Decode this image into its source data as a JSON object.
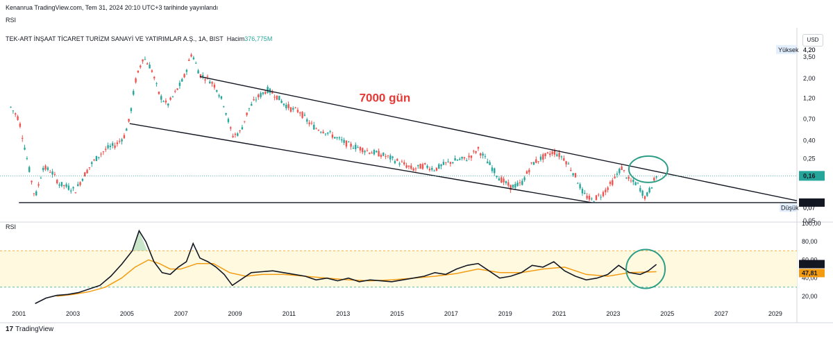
{
  "header": {
    "credit": "Kenanrua TradingView.com, Tem 31, 2024 20:10 UTC+3 tarihinde yayınlandı",
    "indicator_chip": "RSI",
    "symbol_line": "TEK-ART İNŞAAT TİCARET TURİZM SANAYİ VE YATIRIMLAR A.Ş., 1A, BIST",
    "volume_label": "Hacim",
    "volume_value": "376,775M",
    "currency": "USD",
    "brand": "TradingView",
    "brand_mark": "17"
  },
  "chart_data": [
    {
      "type": "candlestick",
      "title": "TEK-ART İNŞAAT TİCARET TURİZM SANAYİ VE YATIRIMLAR A.Ş., 1A, BIST",
      "scale": "log",
      "y_ticks": [
        "4,20",
        "3,50",
        "2,00",
        "1,20",
        "0,70",
        "0,40",
        "0,25",
        "0,16",
        "0,08",
        "0,07",
        "0,05"
      ],
      "y_tick_values": [
        4.2,
        3.5,
        2.0,
        1.2,
        0.7,
        0.4,
        0.25,
        0.16,
        0.08,
        0.07,
        0.05
      ],
      "ylim": [
        0.05,
        4.5
      ],
      "x_ticks": [
        "2001",
        "2003",
        "2005",
        "2007",
        "2009",
        "2011",
        "2013",
        "2015",
        "2017",
        "2019",
        "2021",
        "2023",
        "2025",
        "2027",
        "2029"
      ],
      "x_tick_years": [
        2001,
        2003,
        2005,
        2007,
        2009,
        2011,
        2013,
        2015,
        2017,
        2019,
        2021,
        2023,
        2025,
        2027,
        2029
      ],
      "xlim": [
        2000.3,
        2029.8
      ],
      "last_price": "0,16",
      "high_label": "Yüksek",
      "high_value": "4,20",
      "low_label": "Düşük",
      "low_value": "0,07",
      "support_value": "0,08",
      "annotation": "7000  gün",
      "colors": {
        "up": "#26a69a",
        "down": "#ef5350",
        "annotation": "#e53935",
        "circle": "#2e9e87",
        "trendline": "#131722"
      },
      "price_path": [
        [
          2000.7,
          0.95
        ],
        [
          2001.0,
          0.7
        ],
        [
          2001.3,
          0.25
        ],
        [
          2001.6,
          0.09
        ],
        [
          2001.9,
          0.2
        ],
        [
          2002.2,
          0.18
        ],
        [
          2002.5,
          0.13
        ],
        [
          2002.8,
          0.12
        ],
        [
          2003.1,
          0.11
        ],
        [
          2003.4,
          0.16
        ],
        [
          2003.7,
          0.22
        ],
        [
          2004.0,
          0.28
        ],
        [
          2004.3,
          0.33
        ],
        [
          2004.6,
          0.36
        ],
        [
          2004.9,
          0.45
        ],
        [
          2005.1,
          0.7
        ],
        [
          2005.3,
          1.8
        ],
        [
          2005.6,
          3.5
        ],
        [
          2005.9,
          2.6
        ],
        [
          2006.2,
          1.3
        ],
        [
          2006.5,
          1.0
        ],
        [
          2006.8,
          1.4
        ],
        [
          2007.1,
          2.0
        ],
        [
          2007.4,
          3.9
        ],
        [
          2007.7,
          2.2
        ],
        [
          2008.0,
          2.0
        ],
        [
          2008.3,
          1.6
        ],
        [
          2008.6,
          1.0
        ],
        [
          2008.9,
          0.45
        ],
        [
          2009.2,
          0.5
        ],
        [
          2009.5,
          0.9
        ],
        [
          2009.8,
          1.2
        ],
        [
          2010.2,
          1.5
        ],
        [
          2010.5,
          1.3
        ],
        [
          2010.8,
          1.05
        ],
        [
          2011.1,
          0.9
        ],
        [
          2011.4,
          0.85
        ],
        [
          2011.7,
          0.65
        ],
        [
          2012.0,
          0.55
        ],
        [
          2012.4,
          0.5
        ],
        [
          2012.8,
          0.42
        ],
        [
          2013.2,
          0.36
        ],
        [
          2013.6,
          0.33
        ],
        [
          2014.0,
          0.3
        ],
        [
          2014.4,
          0.28
        ],
        [
          2014.8,
          0.25
        ],
        [
          2015.2,
          0.22
        ],
        [
          2015.6,
          0.19
        ],
        [
          2016.0,
          0.21
        ],
        [
          2016.4,
          0.19
        ],
        [
          2016.8,
          0.22
        ],
        [
          2017.2,
          0.24
        ],
        [
          2017.6,
          0.25
        ],
        [
          2018.0,
          0.32
        ],
        [
          2018.4,
          0.22
        ],
        [
          2018.8,
          0.15
        ],
        [
          2019.2,
          0.12
        ],
        [
          2019.6,
          0.13
        ],
        [
          2020.0,
          0.22
        ],
        [
          2020.4,
          0.26
        ],
        [
          2020.8,
          0.3
        ],
        [
          2021.2,
          0.25
        ],
        [
          2021.6,
          0.16
        ],
        [
          2021.9,
          0.1
        ],
        [
          2022.2,
          0.085
        ],
        [
          2022.6,
          0.1
        ],
        [
          2023.0,
          0.14
        ],
        [
          2023.3,
          0.2
        ],
        [
          2023.6,
          0.14
        ],
        [
          2023.9,
          0.13
        ],
        [
          2024.2,
          0.09
        ],
        [
          2024.6,
          0.16
        ]
      ]
    },
    {
      "type": "line",
      "title": "RSI",
      "y_ticks": [
        "100,00",
        "80,00",
        "60,00",
        "40,00",
        "20,00"
      ],
      "y_tick_values": [
        100,
        80,
        60,
        40,
        20
      ],
      "ylim": [
        10,
        100
      ],
      "band": [
        30,
        70
      ],
      "rsi_last": "55,36",
      "ma_last": "47,81",
      "series": [
        {
          "color": "#131722",
          "points": [
            [
              2001.6,
              12
            ],
            [
              2002.0,
              18
            ],
            [
              2002.4,
              21
            ],
            [
              2002.8,
              22
            ],
            [
              2003.2,
              24
            ],
            [
              2003.6,
              28
            ],
            [
              2004.0,
              32
            ],
            [
              2004.4,
              42
            ],
            [
              2004.8,
              55
            ],
            [
              2005.2,
              70
            ],
            [
              2005.45,
              92
            ],
            [
              2005.7,
              80
            ],
            [
              2006.0,
              58
            ],
            [
              2006.3,
              46
            ],
            [
              2006.6,
              44
            ],
            [
              2006.9,
              52
            ],
            [
              2007.2,
              58
            ],
            [
              2007.45,
              78
            ],
            [
              2007.7,
              62
            ],
            [
              2008.0,
              58
            ],
            [
              2008.3,
              52
            ],
            [
              2008.6,
              44
            ],
            [
              2008.9,
              32
            ],
            [
              2009.2,
              38
            ],
            [
              2009.6,
              46
            ],
            [
              2010.0,
              47
            ],
            [
              2010.4,
              48
            ],
            [
              2010.8,
              46
            ],
            [
              2011.2,
              44
            ],
            [
              2011.6,
              42
            ],
            [
              2012.0,
              38
            ],
            [
              2012.4,
              40
            ],
            [
              2012.8,
              37
            ],
            [
              2013.2,
              40
            ],
            [
              2013.6,
              36
            ],
            [
              2014.0,
              38
            ],
            [
              2014.4,
              37
            ],
            [
              2014.8,
              36
            ],
            [
              2015.2,
              38
            ],
            [
              2015.6,
              40
            ],
            [
              2016.0,
              42
            ],
            [
              2016.4,
              46
            ],
            [
              2016.8,
              44
            ],
            [
              2017.2,
              50
            ],
            [
              2017.6,
              54
            ],
            [
              2018.0,
              56
            ],
            [
              2018.4,
              48
            ],
            [
              2018.8,
              40
            ],
            [
              2019.2,
              42
            ],
            [
              2019.6,
              46
            ],
            [
              2020.0,
              54
            ],
            [
              2020.4,
              52
            ],
            [
              2020.8,
              58
            ],
            [
              2021.2,
              48
            ],
            [
              2021.6,
              42
            ],
            [
              2022.0,
              38
            ],
            [
              2022.4,
              40
            ],
            [
              2022.8,
              44
            ],
            [
              2023.2,
              54
            ],
            [
              2023.6,
              46
            ],
            [
              2024.0,
              44
            ],
            [
              2024.3,
              48
            ],
            [
              2024.6,
              55
            ]
          ]
        },
        {
          "color": "#f39c12",
          "points": [
            [
              2002.4,
              20
            ],
            [
              2003.0,
              22
            ],
            [
              2003.6,
              25
            ],
            [
              2004.2,
              30
            ],
            [
              2004.8,
              40
            ],
            [
              2005.3,
              52
            ],
            [
              2005.8,
              60
            ],
            [
              2006.2,
              56
            ],
            [
              2006.6,
              50
            ],
            [
              2007.0,
              50
            ],
            [
              2007.6,
              56
            ],
            [
              2008.2,
              56
            ],
            [
              2008.8,
              46
            ],
            [
              2009.4,
              42
            ],
            [
              2010.0,
              44
            ],
            [
              2010.8,
              44
            ],
            [
              2011.6,
              42
            ],
            [
              2012.4,
              40
            ],
            [
              2013.2,
              38
            ],
            [
              2014.0,
              37
            ],
            [
              2014.8,
              38
            ],
            [
              2015.6,
              40
            ],
            [
              2016.4,
              42
            ],
            [
              2017.2,
              45
            ],
            [
              2018.0,
              50
            ],
            [
              2018.8,
              46
            ],
            [
              2019.6,
              46
            ],
            [
              2020.4,
              50
            ],
            [
              2021.2,
              52
            ],
            [
              2022.0,
              44
            ],
            [
              2022.8,
              42
            ],
            [
              2023.6,
              46
            ],
            [
              2024.6,
              47
            ]
          ]
        }
      ]
    }
  ]
}
